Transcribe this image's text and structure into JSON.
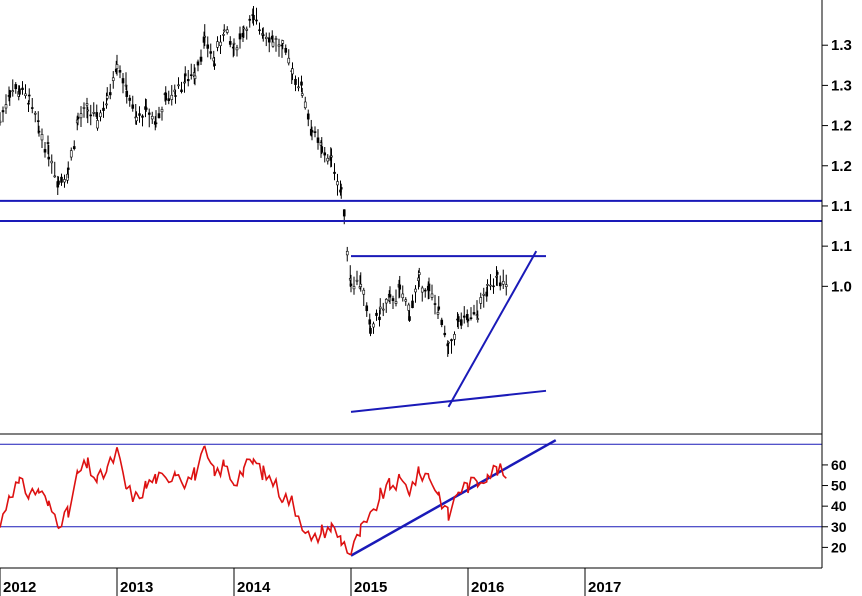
{
  "colors": {
    "price_line": "#000000",
    "trend_line": "#1a1ab8",
    "rsi_line": "#dd1111",
    "axis": "#000000",
    "background": "#ffffff"
  },
  "chart_data": [
    {
      "type": "line",
      "panel": "price",
      "title": "",
      "xlabel": "",
      "ylabel": "",
      "x_tick_labels": [
        "2012",
        "2013",
        "2014",
        "2015",
        "2016",
        "2017"
      ],
      "y_tick_labels": [
        "1.3",
        "1.3",
        "1.2",
        "1.2",
        "1.1",
        "1.1",
        "1.0"
      ],
      "ylim": [
        0.98,
        1.41
      ],
      "grid": false,
      "series": [
        {
          "values_by_month": [
            [
              "2012-01",
              1.29
            ],
            [
              "2012-02",
              1.32
            ],
            [
              "2012-03",
              1.32
            ],
            [
              "2012-04",
              1.31
            ],
            [
              "2012-05",
              1.28
            ],
            [
              "2012-06",
              1.26
            ],
            [
              "2012-07",
              1.23
            ],
            [
              "2012-08",
              1.24
            ],
            [
              "2012-09",
              1.29
            ],
            [
              "2012-10",
              1.3
            ],
            [
              "2012-11",
              1.29
            ],
            [
              "2012-12",
              1.31
            ],
            [
              "2013-01",
              1.35
            ],
            [
              "2013-02",
              1.32
            ],
            [
              "2013-03",
              1.29
            ],
            [
              "2013-04",
              1.3
            ],
            [
              "2013-05",
              1.29
            ],
            [
              "2013-06",
              1.31
            ],
            [
              "2013-07",
              1.32
            ],
            [
              "2013-08",
              1.33
            ],
            [
              "2013-09",
              1.34
            ],
            [
              "2013-10",
              1.37
            ],
            [
              "2013-11",
              1.35
            ],
            [
              "2013-12",
              1.38
            ],
            [
              "2014-01",
              1.36
            ],
            [
              "2014-02",
              1.38
            ],
            [
              "2014-03",
              1.39
            ],
            [
              "2014-04",
              1.38
            ],
            [
              "2014-05",
              1.37
            ],
            [
              "2014-06",
              1.36
            ],
            [
              "2014-07",
              1.34
            ],
            [
              "2014-08",
              1.32
            ],
            [
              "2014-09",
              1.28
            ],
            [
              "2014-10",
              1.26
            ],
            [
              "2014-11",
              1.25
            ],
            [
              "2014-12",
              1.22
            ],
            [
              "2015-01",
              1.13
            ],
            [
              "2015-02",
              1.13
            ],
            [
              "2015-03",
              1.08
            ],
            [
              "2015-04",
              1.1
            ],
            [
              "2015-05",
              1.11
            ],
            [
              "2015-06",
              1.12
            ],
            [
              "2015-07",
              1.1
            ],
            [
              "2015-08",
              1.13
            ],
            [
              "2015-09",
              1.12
            ],
            [
              "2015-10",
              1.1
            ],
            [
              "2015-11",
              1.06
            ],
            [
              "2015-12",
              1.09
            ],
            [
              "2016-01",
              1.09
            ],
            [
              "2016-02",
              1.1
            ],
            [
              "2016-03",
              1.12
            ],
            [
              "2016-04",
              1.14
            ],
            [
              "2016-05",
              1.12
            ]
          ]
        }
      ],
      "reference_lines": [
        {
          "kind": "horizontal",
          "y": 1.21
        },
        {
          "kind": "horizontal",
          "y": 1.19
        },
        {
          "kind": "segment",
          "from": [
            "2015-01",
            1.155
          ],
          "to": [
            "2016-09",
            1.155
          ]
        },
        {
          "kind": "segment",
          "from": [
            "2015-01",
            1.0
          ],
          "to": [
            "2016-09",
            1.021
          ]
        },
        {
          "kind": "segment",
          "from": [
            "2015-11",
            1.005
          ],
          "to": [
            "2016-08",
            1.16
          ]
        }
      ]
    },
    {
      "type": "line",
      "panel": "oscillator",
      "title": "",
      "xlabel": "",
      "ylabel": "",
      "y_tick_labels": [
        "60",
        "50",
        "40",
        "30",
        "20"
      ],
      "ylim": [
        10,
        75
      ],
      "grid": false,
      "series": [
        {
          "values_by_month": [
            [
              "2012-01",
              30
            ],
            [
              "2012-02",
              47
            ],
            [
              "2012-03",
              51
            ],
            [
              "2012-04",
              46
            ],
            [
              "2012-05",
              48
            ],
            [
              "2012-06",
              40
            ],
            [
              "2012-07",
              33
            ],
            [
              "2012-08",
              36
            ],
            [
              "2012-09",
              56
            ],
            [
              "2012-10",
              60
            ],
            [
              "2012-11",
              52
            ],
            [
              "2012-12",
              58
            ],
            [
              "2013-01",
              66
            ],
            [
              "2013-02",
              48
            ],
            [
              "2013-03",
              44
            ],
            [
              "2013-04",
              50
            ],
            [
              "2013-05",
              54
            ],
            [
              "2013-06",
              52
            ],
            [
              "2013-07",
              58
            ],
            [
              "2013-08",
              52
            ],
            [
              "2013-09",
              56
            ],
            [
              "2013-10",
              66
            ],
            [
              "2013-11",
              55
            ],
            [
              "2013-12",
              60
            ],
            [
              "2014-01",
              52
            ],
            [
              "2014-02",
              58
            ],
            [
              "2014-03",
              62
            ],
            [
              "2014-04",
              56
            ],
            [
              "2014-05",
              52
            ],
            [
              "2014-06",
              45
            ],
            [
              "2014-07",
              42
            ],
            [
              "2014-08",
              32
            ],
            [
              "2014-09",
              22
            ],
            [
              "2014-10",
              28
            ],
            [
              "2014-11",
              30
            ],
            [
              "2014-12",
              24
            ],
            [
              "2015-01",
              17
            ],
            [
              "2015-02",
              28
            ],
            [
              "2015-03",
              34
            ],
            [
              "2015-04",
              45
            ],
            [
              "2015-05",
              50
            ],
            [
              "2015-06",
              52
            ],
            [
              "2015-07",
              48
            ],
            [
              "2015-08",
              56
            ],
            [
              "2015-09",
              55
            ],
            [
              "2015-10",
              46
            ],
            [
              "2015-11",
              35
            ],
            [
              "2015-12",
              48
            ],
            [
              "2016-01",
              50
            ],
            [
              "2016-02",
              52
            ],
            [
              "2016-03",
              56
            ],
            [
              "2016-04",
              58
            ],
            [
              "2016-05",
              54
            ]
          ]
        }
      ],
      "reference_lines": [
        {
          "kind": "horizontal",
          "y": 70
        },
        {
          "kind": "horizontal",
          "y": 30
        },
        {
          "kind": "segment",
          "from": [
            "2015-01",
            16
          ],
          "to": [
            "2016-10",
            72
          ]
        }
      ]
    }
  ]
}
